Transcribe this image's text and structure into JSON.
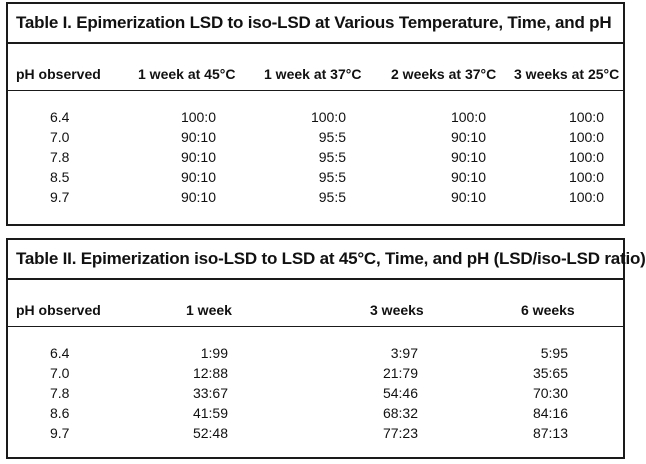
{
  "table1": {
    "title": "Table I. Epimerization LSD to iso-LSD at Various Temperature, Time, and pH",
    "headers": [
      "pH observed",
      "1 week at 45°C",
      "1 week at 37°C",
      "2 weeks at 37°C",
      "3 weeks at 25°C"
    ],
    "rows": [
      [
        "6.4",
        "100:0",
        "100:0",
        "100:0",
        "100:0"
      ],
      [
        "7.0",
        "90:10",
        "95:5",
        "90:10",
        "100:0"
      ],
      [
        "7.8",
        "90:10",
        "95:5",
        "90:10",
        "100:0"
      ],
      [
        "8.5",
        "90:10",
        "95:5",
        "90:10",
        "100:0"
      ],
      [
        "9.7",
        "90:10",
        "95:5",
        "90:10",
        "100:0"
      ]
    ]
  },
  "table2": {
    "title": "Table II. Epimerization iso-LSD to LSD at 45°C, Time, and pH (LSD/iso-LSD ratio)",
    "headers": [
      "pH observed",
      "1 week",
      "3 weeks",
      "6 weeks"
    ],
    "rows": [
      [
        "6.4",
        "1:99",
        "3:97",
        "5:95"
      ],
      [
        "7.0",
        "12:88",
        "21:79",
        "35:65"
      ],
      [
        "7.8",
        "33:67",
        "54:46",
        "70:30"
      ],
      [
        "8.6",
        "41:59",
        "68:32",
        "84:16"
      ],
      [
        "9.7",
        "52:48",
        "77:23",
        "87:13"
      ]
    ]
  }
}
